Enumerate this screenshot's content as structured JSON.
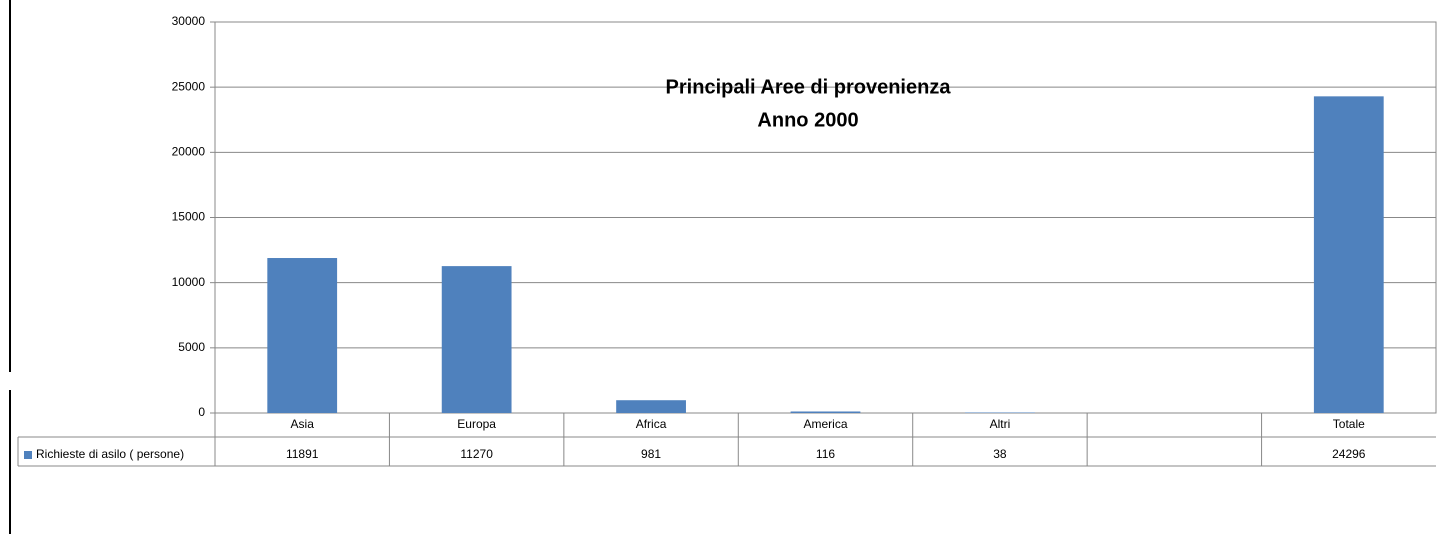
{
  "chart_data": {
    "type": "bar",
    "title": "Principali Aree di provenienza",
    "subtitle": "Anno 2000",
    "categories": [
      "Asia",
      "Europa",
      "Africa",
      "America",
      "Altri",
      null,
      "Totale"
    ],
    "series": [
      {
        "name": "Richieste di asilo ( persone)",
        "color": "#4f81bd",
        "values": [
          11891,
          11270,
          981,
          116,
          38,
          null,
          24296
        ]
      }
    ],
    "ylim": [
      0,
      30000
    ],
    "yticks": [
      0,
      5000,
      10000,
      15000,
      20000,
      25000,
      30000
    ],
    "grid": true,
    "data_table": true
  }
}
